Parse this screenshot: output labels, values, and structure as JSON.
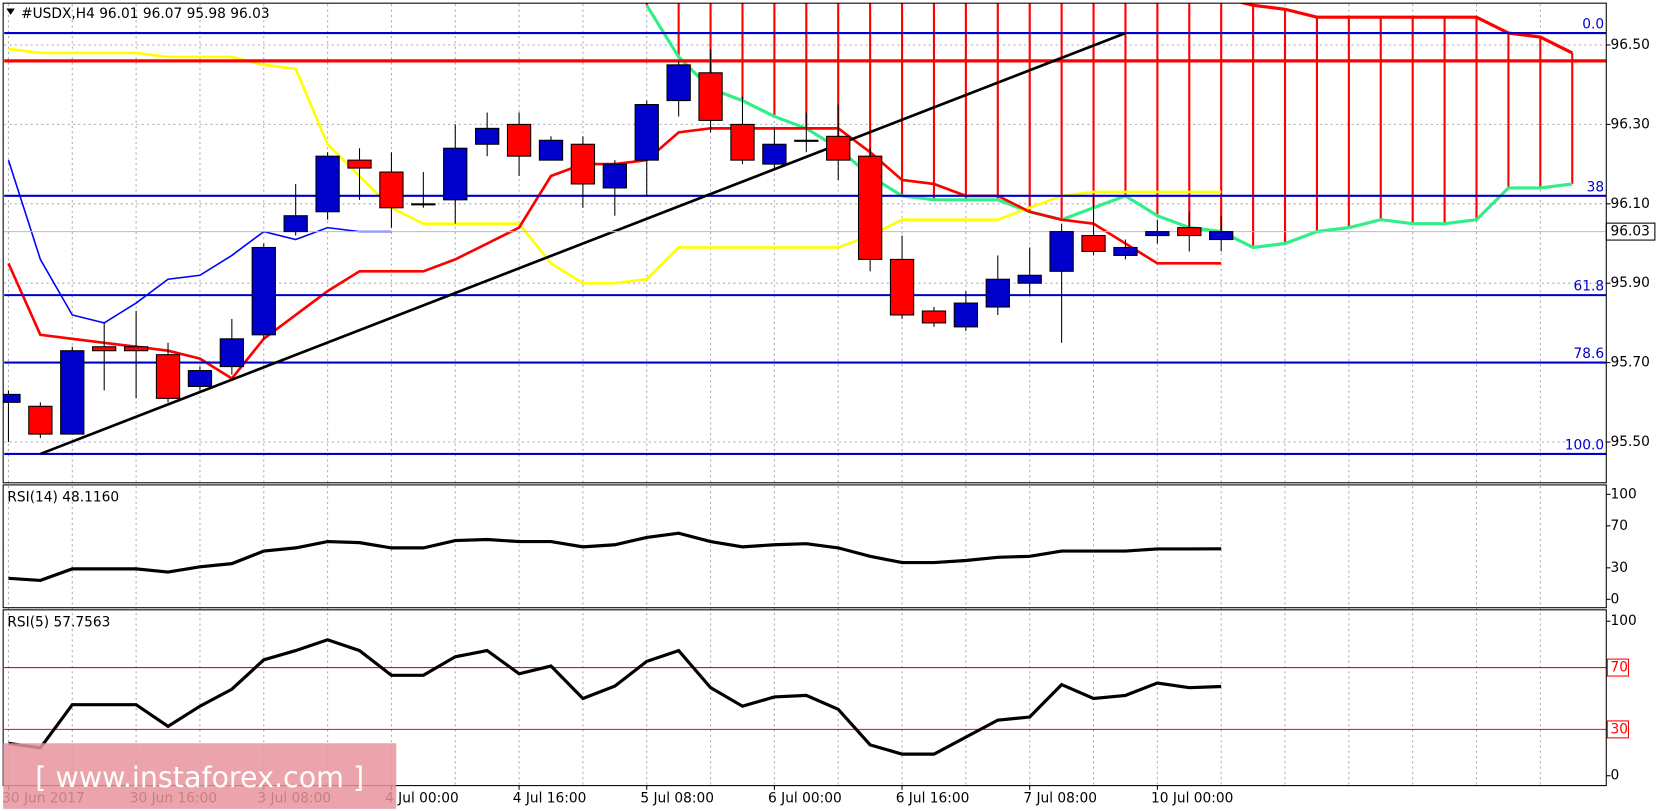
{
  "chart_data": {
    "type": "candlestick",
    "title": "#USDX,H4  96.01 96.07 95.98 96.03",
    "categories": [
      "30 Jun 2017",
      null,
      null,
      null,
      "30 Jun 16:00",
      null,
      null,
      null,
      "3 Jul 08:00",
      null,
      null,
      null,
      "4 Jul 00:00",
      null,
      null,
      null,
      "4 Jul 16:00",
      null,
      null,
      null,
      "5 Jul 08:00",
      null,
      null,
      null,
      "6 Jul 00:00",
      null,
      null,
      null,
      "6 Jul 16:00",
      null,
      null,
      null,
      "7 Jul 08:00",
      null,
      null,
      null,
      "10 Jul 00:00",
      null,
      null,
      null,
      null,
      null,
      null,
      null,
      null,
      null,
      null,
      null,
      null,
      null
    ],
    "open": [
      95.6,
      95.59,
      95.52,
      95.74,
      95.74,
      95.72,
      95.64,
      95.69,
      95.77,
      96.03,
      96.08,
      96.21,
      96.18,
      96.1,
      96.11,
      96.25,
      96.3,
      96.21,
      96.25,
      96.14,
      96.21,
      96.36,
      96.43,
      96.3,
      96.2,
      96.26,
      96.27,
      96.22,
      95.96,
      95.83,
      95.79,
      95.84,
      95.9,
      95.93,
      96.02,
      95.97,
      96.02,
      96.04,
      96.01,
      null,
      null,
      null,
      null,
      null,
      null,
      null,
      null,
      null,
      null,
      null
    ],
    "high": [
      95.63,
      95.6,
      95.74,
      95.8,
      95.83,
      95.75,
      95.69,
      95.81,
      96.0,
      96.15,
      96.23,
      96.24,
      96.23,
      96.18,
      96.3,
      96.33,
      96.33,
      96.27,
      96.27,
      96.21,
      96.36,
      96.46,
      96.49,
      96.37,
      96.29,
      96.33,
      96.35,
      96.24,
      96.02,
      95.84,
      95.88,
      95.97,
      95.99,
      96.05,
      96.12,
      96.01,
      96.06,
      96.08,
      96.07,
      null,
      null,
      null,
      null,
      null,
      null,
      null,
      null,
      null,
      null,
      null
    ],
    "low": [
      95.5,
      95.51,
      95.52,
      95.63,
      95.61,
      95.6,
      95.63,
      95.67,
      95.76,
      96.02,
      96.06,
      96.11,
      96.04,
      96.09,
      96.05,
      96.22,
      96.17,
      96.21,
      96.09,
      96.07,
      96.12,
      96.32,
      96.28,
      96.2,
      96.19,
      96.23,
      96.16,
      95.93,
      95.81,
      95.79,
      95.78,
      95.82,
      95.87,
      95.75,
      95.97,
      95.96,
      96.0,
      95.98,
      95.98,
      null,
      null,
      null,
      null,
      null,
      null,
      null,
      null,
      null,
      null,
      null
    ],
    "close": [
      95.62,
      95.52,
      95.73,
      95.73,
      95.73,
      95.61,
      95.68,
      95.76,
      95.99,
      96.07,
      96.22,
      96.19,
      96.09,
      96.1,
      96.24,
      96.29,
      96.22,
      96.26,
      96.15,
      96.2,
      96.35,
      96.45,
      96.31,
      96.21,
      96.25,
      96.26,
      96.21,
      95.96,
      95.82,
      95.8,
      95.85,
      95.91,
      95.92,
      96.03,
      95.98,
      95.99,
      96.03,
      96.02,
      96.03,
      null,
      null,
      null,
      null,
      null,
      null,
      null,
      null,
      null,
      null,
      null
    ],
    "up_color": "#0000cc",
    "down_color": "#ff0000",
    "ylim": [
      95.4,
      96.6
    ],
    "yticks": [
      {
        "value": 96.5,
        "label": "96.50"
      },
      {
        "value": 96.3,
        "label": "96.30"
      },
      {
        "value": 96.1,
        "label": "96.10"
      },
      {
        "value": 95.9,
        "label": "95.90"
      },
      {
        "value": 95.7,
        "label": "95.70"
      },
      {
        "value": 95.5,
        "label": "95.50"
      }
    ],
    "grid": true,
    "last_price": 96.03,
    "fib_levels": [
      {
        "label": "0.0",
        "value": 96.53
      },
      {
        "label": "38",
        "value": 96.12
      },
      {
        "label": "61.8",
        "value": 95.87
      },
      {
        "label": "78.6",
        "value": 95.7
      },
      {
        "label": "100.0",
        "value": 95.47
      }
    ],
    "fib_color": "#0000cc",
    "resistance": {
      "value": 96.46,
      "color": "#ff0000"
    },
    "trendline": {
      "x": [
        1,
        35
      ],
      "values": [
        95.47,
        96.53
      ],
      "color": "#000000"
    },
    "series": [
      {
        "color": "#ff0000",
        "values": [
          95.95,
          95.77,
          95.76,
          95.75,
          95.74,
          95.73,
          95.71,
          95.66,
          95.76,
          95.82,
          95.88,
          95.93,
          95.93,
          95.93,
          95.96,
          96.0,
          96.04,
          96.17,
          96.2,
          96.2,
          96.21,
          96.28,
          96.29,
          96.29,
          96.29,
          96.29,
          96.29,
          96.23,
          96.16,
          96.15,
          96.12,
          96.12,
          96.08,
          96.06,
          96.05,
          96.0,
          95.95,
          95.95,
          95.95,
          null,
          null,
          null,
          null,
          null,
          null,
          null,
          null,
          null,
          null,
          null
        ]
      },
      {
        "color": "#ffff00",
        "values": [
          96.49,
          96.48,
          96.48,
          96.48,
          96.48,
          96.47,
          96.47,
          96.47,
          96.45,
          96.44,
          96.25,
          96.17,
          96.09,
          96.05,
          96.05,
          96.05,
          96.05,
          95.95,
          95.9,
          95.9,
          95.91,
          95.99,
          95.99,
          95.99,
          95.99,
          95.99,
          95.99,
          96.02,
          96.06,
          96.06,
          96.06,
          96.06,
          96.09,
          96.12,
          96.13,
          96.13,
          96.13,
          96.13,
          96.13,
          null,
          null,
          null,
          null,
          null,
          null,
          null,
          null,
          null,
          null,
          null
        ]
      },
      {
        "color": "#0000ff",
        "values": [
          96.21,
          95.96,
          95.82,
          95.8,
          95.85,
          95.91,
          95.92,
          95.97,
          96.03,
          96.01,
          96.04,
          96.03,
          96.03,
          null,
          null,
          null,
          null,
          null,
          null,
          null,
          null,
          null,
          null,
          null,
          null,
          null,
          null,
          null,
          null,
          null,
          null,
          null,
          null,
          null,
          null,
          null,
          null,
          null,
          null,
          null,
          null,
          null,
          null,
          null,
          null,
          null,
          null,
          null,
          null,
          null
        ]
      },
      {
        "color": "#33ee88",
        "values": [
          null,
          null,
          null,
          null,
          null,
          null,
          null,
          null,
          null,
          null,
          null,
          null,
          null,
          null,
          null,
          null,
          null,
          null,
          null,
          null,
          96.6,
          96.47,
          96.39,
          96.36,
          96.32,
          96.29,
          96.24,
          96.17,
          96.12,
          96.11,
          96.11,
          96.11,
          96.08,
          96.06,
          96.09,
          96.12,
          96.07,
          96.04,
          96.03,
          95.99,
          96.0,
          96.03,
          96.04,
          96.06,
          96.05,
          96.05,
          96.06,
          96.14,
          96.14,
          96.15
        ]
      },
      {
        "color": "#ff0000",
        "values": [
          null,
          null,
          null,
          null,
          null,
          null,
          null,
          null,
          null,
          null,
          null,
          null,
          null,
          null,
          null,
          null,
          null,
          null,
          null,
          null,
          96.62,
          96.62,
          96.62,
          96.62,
          96.62,
          96.62,
          96.62,
          96.62,
          96.62,
          96.62,
          96.62,
          96.62,
          96.62,
          96.62,
          96.62,
          96.62,
          96.62,
          96.62,
          96.62,
          96.6,
          96.59,
          96.57,
          96.57,
          96.57,
          96.57,
          96.57,
          96.57,
          96.53,
          96.52,
          96.48
        ]
      }
    ],
    "indicators": [
      {
        "title": "RSI(14) 48.1160",
        "color": "#000000",
        "ylim": [
          -7,
          107
        ],
        "yticks": [
          100,
          70,
          30,
          0
        ],
        "values": [
          20,
          18,
          29,
          29,
          29,
          26,
          31,
          34,
          46,
          49,
          55,
          54,
          49,
          49,
          56,
          57,
          55,
          55,
          50,
          52,
          59,
          63,
          55,
          50,
          52,
          53,
          49,
          41,
          35,
          35,
          37,
          40,
          41,
          46,
          46,
          46,
          48,
          48,
          48.116,
          null,
          null,
          null,
          null,
          null,
          null,
          null,
          null,
          null,
          null,
          null
        ]
      },
      {
        "title": "RSI(5) 57.7563",
        "color": "#000000",
        "ylim": [
          -5,
          106
        ],
        "yticks": [
          100,
          0
        ],
        "levels": [
          70,
          30
        ],
        "level_color": "#ff0000",
        "values": [
          21,
          18,
          46,
          46,
          46,
          32,
          45,
          56,
          75,
          81,
          88,
          81,
          65,
          65,
          77,
          81,
          66,
          71,
          50,
          58,
          74,
          81,
          57,
          45,
          51,
          52,
          43,
          20,
          14,
          14,
          25,
          36,
          38,
          59,
          50,
          52,
          60,
          57,
          57.7563,
          null,
          null,
          null,
          null,
          null,
          null,
          null,
          null,
          null,
          null,
          null
        ]
      }
    ],
    "watermark": "[ www.instaforex.com ]"
  }
}
